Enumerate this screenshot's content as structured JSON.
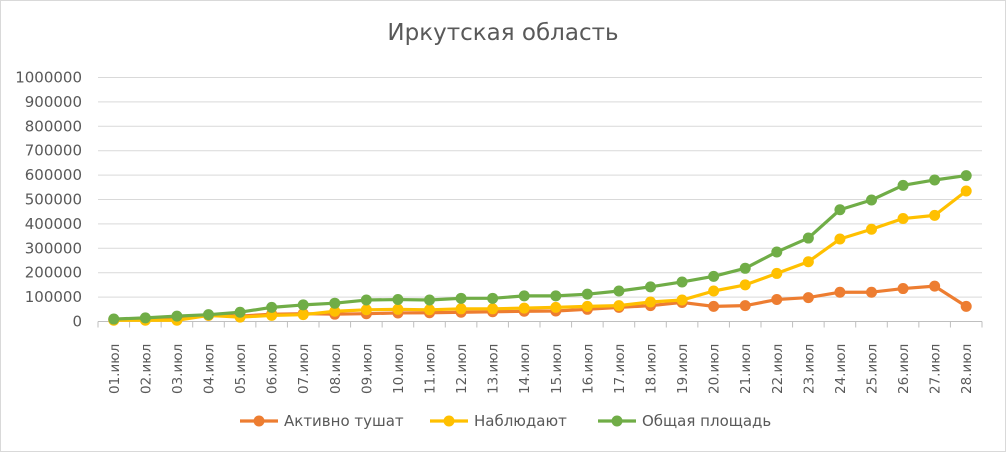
{
  "chart_data": {
    "type": "line",
    "title": "Иркутская область",
    "xlabel": "",
    "ylabel": "",
    "categories": [
      "01.июл",
      "02.июл",
      "03.июл",
      "04.июл",
      "05.июл",
      "06.июл",
      "07.июл",
      "08.июл",
      "09.июл",
      "10.июл",
      "11.июл",
      "12.июл",
      "13.июл",
      "14.июл",
      "15.июл",
      "16.июл",
      "17.июл",
      "18.июл",
      "19.июл",
      "20.июл",
      "21.июл",
      "22.июл",
      "23.июл",
      "24.июл",
      "25.июл",
      "26.июл",
      "27.июл",
      "28.июл"
    ],
    "ylim": [
      0,
      1000000
    ],
    "yticks": [
      "0",
      "100000",
      "200000",
      "300000",
      "400000",
      "500000",
      "600000",
      "700000",
      "800000",
      "900000",
      "1000000"
    ],
    "grid": true,
    "legend_position": "bottom",
    "series": [
      {
        "name": "Активно тушат",
        "color": "#ed7d31",
        "values": [
          8000,
          12000,
          18000,
          25000,
          22000,
          30000,
          32000,
          30000,
          32000,
          35000,
          36000,
          38000,
          40000,
          42000,
          43000,
          50000,
          58000,
          65000,
          78000,
          62000,
          65000,
          90000,
          98000,
          120000,
          120000,
          135000,
          145000,
          62000
        ]
      },
      {
        "name": "Наблюдают",
        "color": "#ffc000",
        "values": [
          5000,
          5000,
          5000,
          25000,
          18000,
          25000,
          28000,
          42000,
          48000,
          50000,
          48000,
          52000,
          52000,
          55000,
          58000,
          62000,
          65000,
          80000,
          88000,
          125000,
          150000,
          197000,
          245000,
          338000,
          378000,
          422000,
          435000,
          535000
        ]
      },
      {
        "name": "Общая площадь",
        "color": "#70ad47",
        "values": [
          10000,
          15000,
          22000,
          28000,
          38000,
          58000,
          68000,
          75000,
          88000,
          90000,
          88000,
          95000,
          95000,
          105000,
          105000,
          112000,
          125000,
          142000,
          162000,
          185000,
          218000,
          285000,
          342000,
          458000,
          498000,
          558000,
          580000,
          598000
        ]
      }
    ]
  }
}
